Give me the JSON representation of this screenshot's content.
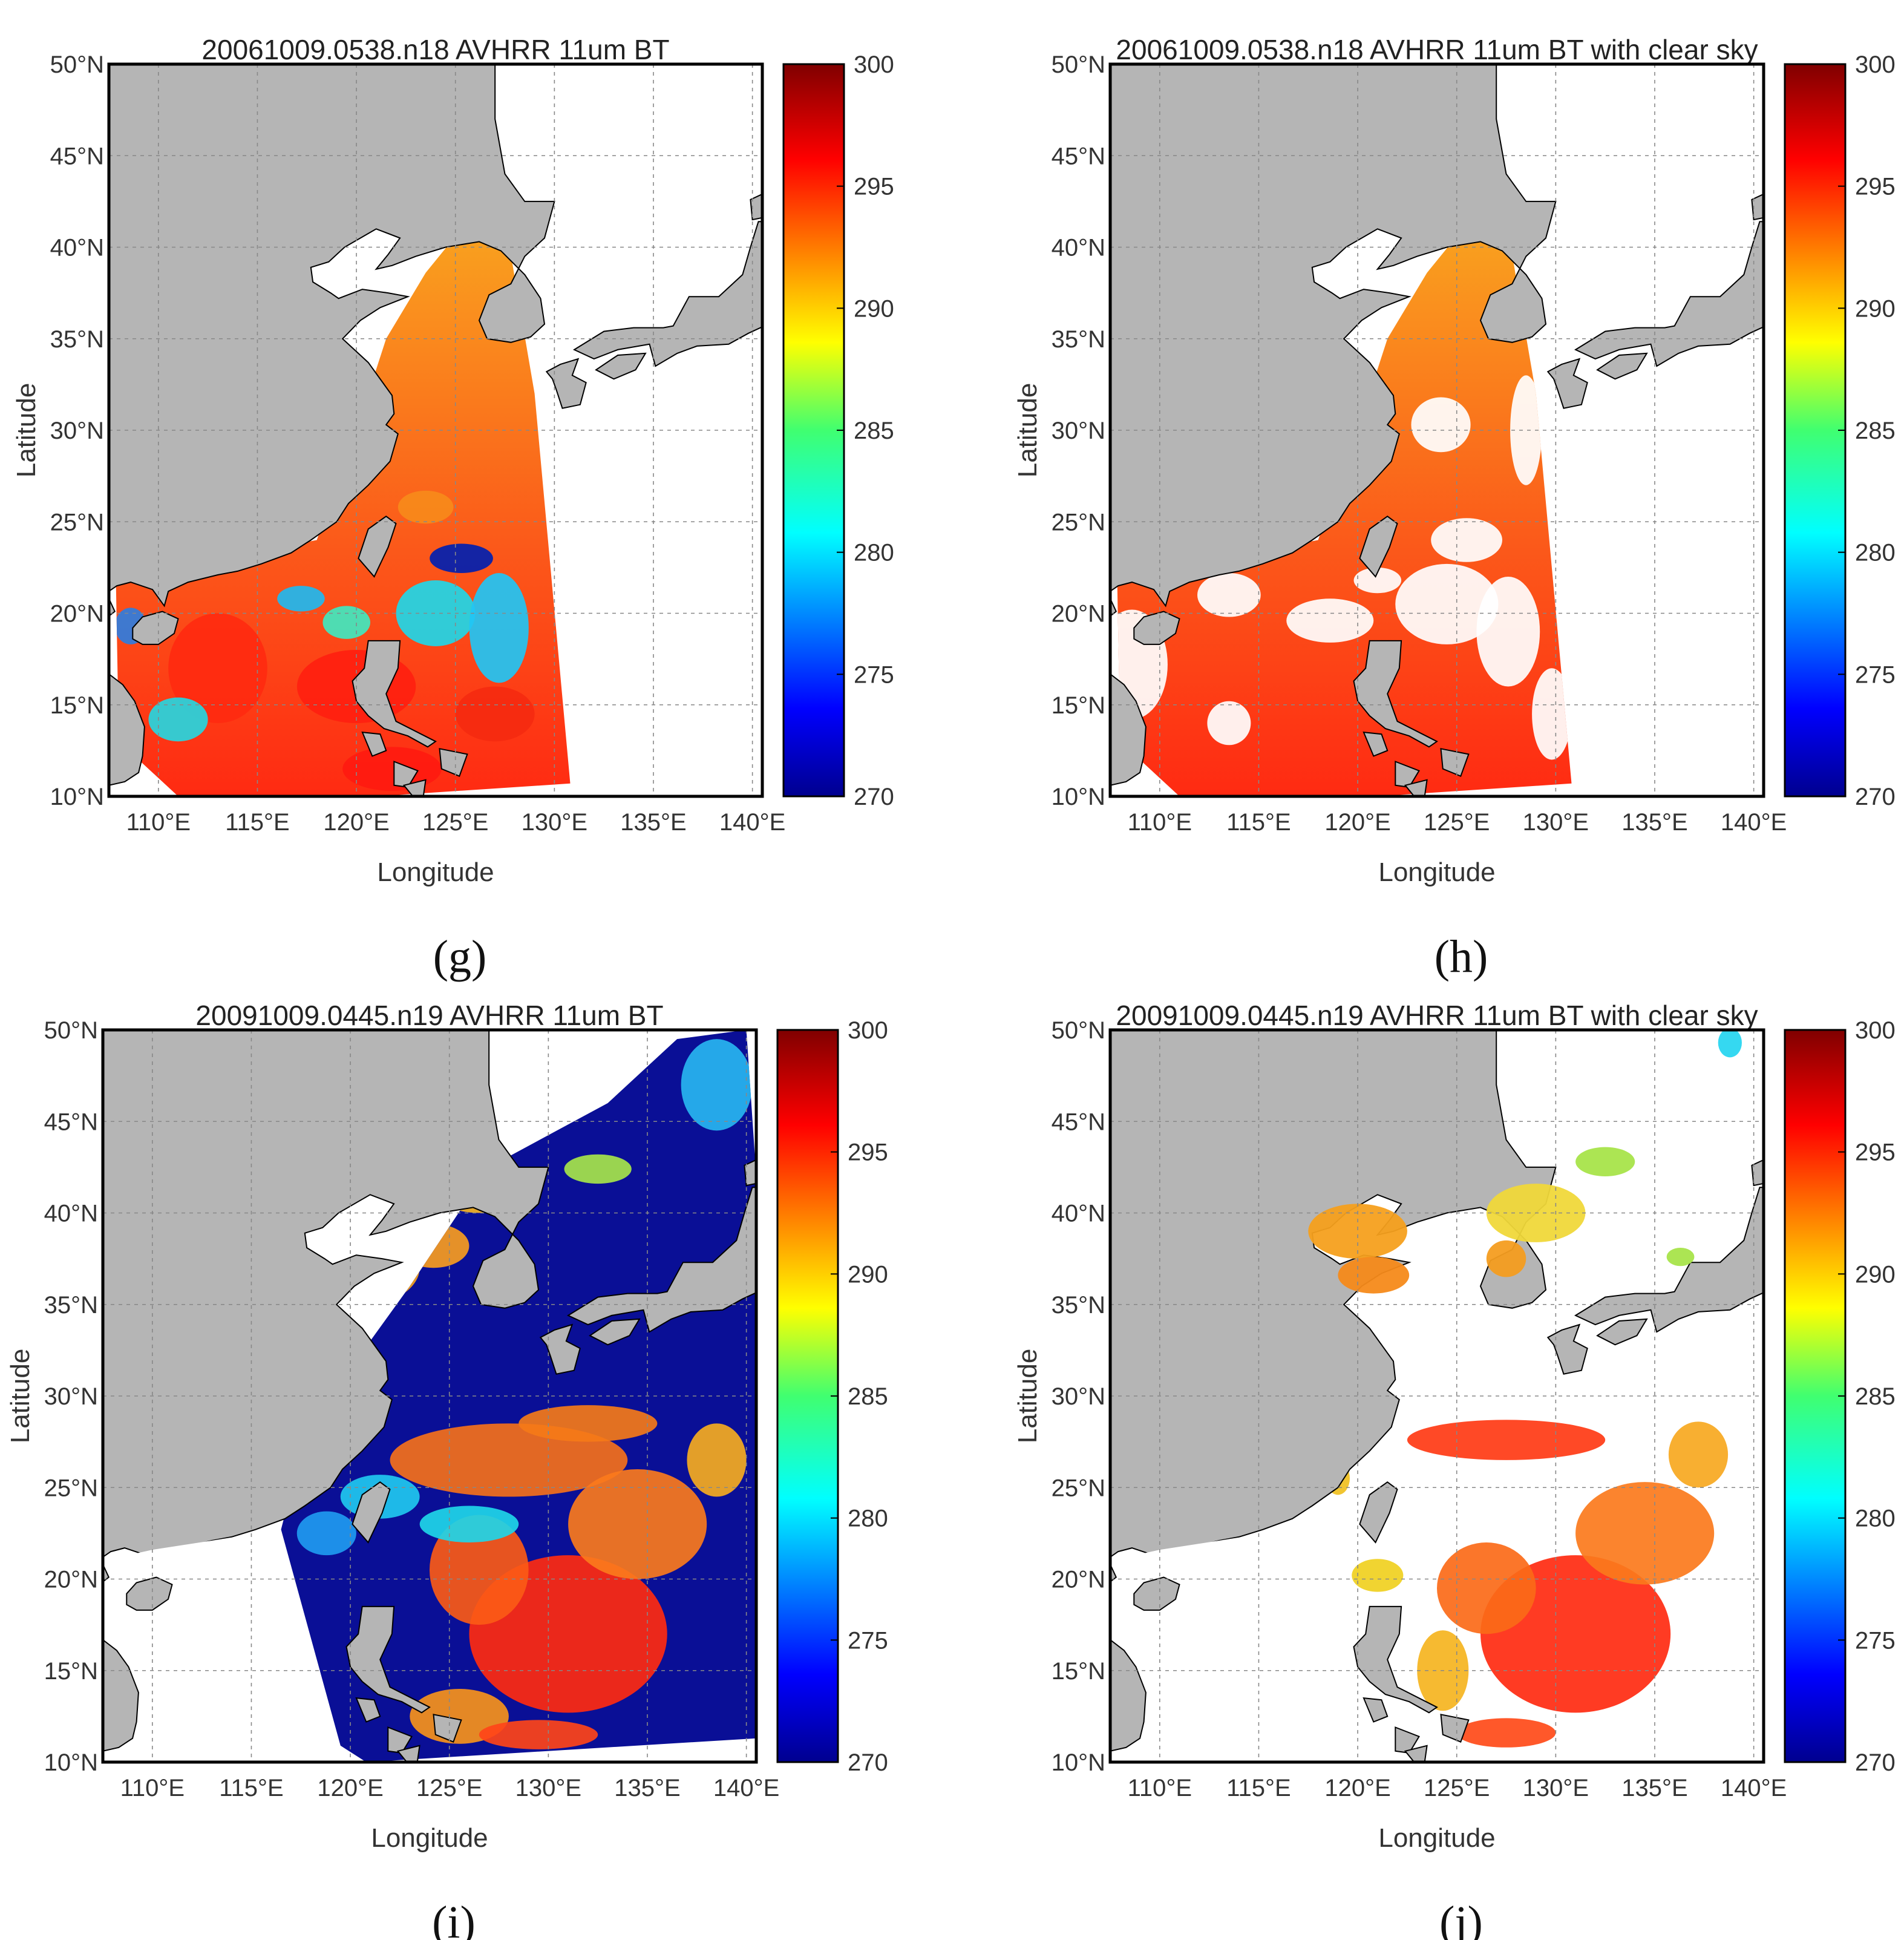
{
  "panels": [
    {
      "id": "g",
      "title": "20061009.0538.n18 AVHRR 11um BT",
      "caption": "(g)",
      "variant": "full1"
    },
    {
      "id": "h",
      "title": "20061009.0538.n18 AVHRR 11um BT with clear sky",
      "caption": "(h)",
      "variant": "clear1"
    },
    {
      "id": "i",
      "title": "20091009.0445.n19 AVHRR 11um BT",
      "caption": "(i)",
      "variant": "full2"
    },
    {
      "id": "j",
      "title": "20091009.0445.n19 AVHRR 11um BT with clear sky",
      "caption": "(j)",
      "variant": "clear2"
    }
  ],
  "axes": {
    "xlabel": "Longitude",
    "ylabel": "Latitude",
    "xticks": [
      "110°E",
      "115°E",
      "120°E",
      "125°E",
      "130°E",
      "135°E",
      "140°E"
    ],
    "yticks": [
      "50°N",
      "45°N",
      "40°N",
      "35°N",
      "30°N",
      "25°N",
      "20°N",
      "15°N",
      "10°N"
    ],
    "lon_range": [
      107.5,
      140.5
    ],
    "lat_range": [
      10,
      50
    ]
  },
  "colorbar": {
    "ticks": [
      "300",
      "295",
      "290",
      "285",
      "280",
      "275",
      "270"
    ],
    "range": [
      270,
      300
    ],
    "colormap": "jet"
  },
  "colors": {
    "land": "#b5b5b5",
    "background": "#ffffff",
    "frame": "#000000"
  }
}
